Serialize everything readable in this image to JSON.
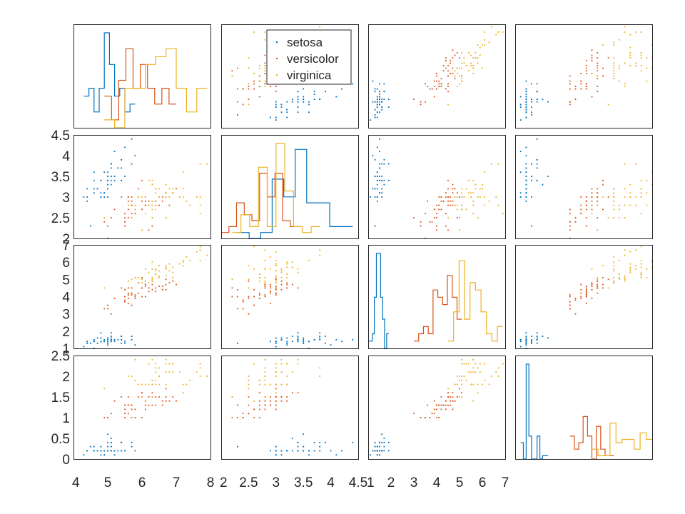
{
  "colors": {
    "setosa": "#0072bd",
    "versicolor": "#d95319",
    "virginica": "#edb120",
    "axes": "#262626",
    "background": "#ffffff"
  },
  "chart_data": {
    "type": "scatter",
    "layout": "scatter-matrix 4x4 with histograms on diagonal",
    "title": "",
    "variables": [
      "",
      "",
      "",
      ""
    ],
    "legend": {
      "placement": "top (inside panel row 1, column 2)",
      "entries": [
        "setosa",
        "versicolor",
        "virginica"
      ]
    },
    "grid": false,
    "axes": {
      "sepal_length": {
        "range": [
          4,
          8
        ],
        "ticks": [
          "4",
          "5",
          "6",
          "7",
          "8"
        ]
      },
      "sepal_width": {
        "range": [
          2,
          4.5
        ],
        "ticks": [
          "2",
          "2.5",
          "3",
          "3.5",
          "4",
          "4.5"
        ]
      },
      "petal_length": {
        "range": [
          1,
          7
        ],
        "ticks": [
          "1",
          "2",
          "3",
          "4",
          "5",
          "6",
          "7"
        ]
      },
      "petal_width": {
        "range": [
          0,
          2.5
        ],
        "ticks": [
          "0",
          "0.5",
          "1",
          "1.5",
          "2",
          "2.5"
        ]
      }
    },
    "series": [
      {
        "name": "setosa",
        "points": [
          [
            5.1,
            3.5,
            1.4,
            0.2
          ],
          [
            4.9,
            3.0,
            1.4,
            0.2
          ],
          [
            4.7,
            3.2,
            1.3,
            0.2
          ],
          [
            4.6,
            3.1,
            1.5,
            0.2
          ],
          [
            5.0,
            3.6,
            1.4,
            0.2
          ],
          [
            5.4,
            3.9,
            1.7,
            0.4
          ],
          [
            4.6,
            3.4,
            1.4,
            0.3
          ],
          [
            5.0,
            3.4,
            1.5,
            0.2
          ],
          [
            4.4,
            2.9,
            1.4,
            0.2
          ],
          [
            4.9,
            3.1,
            1.5,
            0.1
          ],
          [
            5.4,
            3.7,
            1.5,
            0.2
          ],
          [
            4.8,
            3.4,
            1.6,
            0.2
          ],
          [
            4.8,
            3.0,
            1.4,
            0.1
          ],
          [
            4.3,
            3.0,
            1.1,
            0.1
          ],
          [
            5.8,
            4.0,
            1.2,
            0.2
          ],
          [
            5.7,
            4.4,
            1.5,
            0.4
          ],
          [
            5.4,
            3.9,
            1.3,
            0.4
          ],
          [
            5.1,
            3.5,
            1.4,
            0.3
          ],
          [
            5.7,
            3.8,
            1.7,
            0.3
          ],
          [
            5.1,
            3.8,
            1.5,
            0.3
          ],
          [
            5.4,
            3.4,
            1.7,
            0.2
          ],
          [
            5.1,
            3.7,
            1.5,
            0.4
          ],
          [
            4.6,
            3.6,
            1.0,
            0.2
          ],
          [
            5.1,
            3.3,
            1.7,
            0.5
          ],
          [
            4.8,
            3.4,
            1.9,
            0.2
          ],
          [
            5.0,
            3.0,
            1.6,
            0.2
          ],
          [
            5.0,
            3.4,
            1.6,
            0.4
          ],
          [
            5.2,
            3.5,
            1.5,
            0.2
          ],
          [
            5.2,
            3.4,
            1.4,
            0.2
          ],
          [
            4.7,
            3.2,
            1.6,
            0.2
          ],
          [
            4.8,
            3.1,
            1.6,
            0.2
          ],
          [
            5.4,
            3.4,
            1.5,
            0.4
          ],
          [
            5.2,
            4.1,
            1.5,
            0.1
          ],
          [
            5.5,
            4.2,
            1.4,
            0.2
          ],
          [
            4.9,
            3.1,
            1.5,
            0.2
          ],
          [
            5.0,
            3.2,
            1.2,
            0.2
          ],
          [
            5.5,
            3.5,
            1.3,
            0.2
          ],
          [
            4.9,
            3.6,
            1.4,
            0.1
          ],
          [
            4.4,
            3.0,
            1.3,
            0.2
          ],
          [
            5.1,
            3.4,
            1.5,
            0.2
          ],
          [
            5.0,
            3.5,
            1.3,
            0.3
          ],
          [
            4.5,
            2.3,
            1.3,
            0.3
          ],
          [
            4.4,
            3.2,
            1.3,
            0.2
          ],
          [
            5.0,
            3.5,
            1.6,
            0.6
          ],
          [
            5.1,
            3.8,
            1.9,
            0.4
          ],
          [
            4.8,
            3.0,
            1.4,
            0.3
          ],
          [
            5.1,
            3.8,
            1.6,
            0.2
          ],
          [
            4.6,
            3.2,
            1.4,
            0.2
          ],
          [
            5.3,
            3.7,
            1.5,
            0.2
          ],
          [
            5.0,
            3.3,
            1.4,
            0.2
          ]
        ]
      },
      {
        "name": "versicolor",
        "points": [
          [
            7.0,
            3.2,
            4.7,
            1.4
          ],
          [
            6.4,
            3.2,
            4.5,
            1.5
          ],
          [
            6.9,
            3.1,
            4.9,
            1.5
          ],
          [
            5.5,
            2.3,
            4.0,
            1.3
          ],
          [
            6.5,
            2.8,
            4.6,
            1.5
          ],
          [
            5.7,
            2.8,
            4.5,
            1.3
          ],
          [
            6.3,
            3.3,
            4.7,
            1.6
          ],
          [
            4.9,
            2.4,
            3.3,
            1.0
          ],
          [
            6.6,
            2.9,
            4.6,
            1.3
          ],
          [
            5.2,
            2.7,
            3.9,
            1.4
          ],
          [
            5.0,
            2.0,
            3.5,
            1.0
          ],
          [
            5.9,
            3.0,
            4.2,
            1.5
          ],
          [
            6.0,
            2.2,
            4.0,
            1.0
          ],
          [
            6.1,
            2.9,
            4.7,
            1.4
          ],
          [
            5.6,
            2.9,
            3.6,
            1.3
          ],
          [
            6.7,
            3.1,
            4.4,
            1.4
          ],
          [
            5.6,
            3.0,
            4.5,
            1.5
          ],
          [
            5.8,
            2.7,
            4.1,
            1.0
          ],
          [
            6.2,
            2.2,
            4.5,
            1.5
          ],
          [
            5.6,
            2.5,
            3.9,
            1.1
          ],
          [
            5.9,
            3.2,
            4.8,
            1.8
          ],
          [
            6.1,
            2.8,
            4.0,
            1.3
          ],
          [
            6.3,
            2.5,
            4.9,
            1.5
          ],
          [
            6.1,
            2.8,
            4.7,
            1.2
          ],
          [
            6.4,
            2.9,
            4.3,
            1.3
          ],
          [
            6.6,
            3.0,
            4.4,
            1.4
          ],
          [
            6.8,
            2.8,
            4.8,
            1.4
          ],
          [
            6.7,
            3.0,
            5.0,
            1.7
          ],
          [
            6.0,
            2.9,
            4.5,
            1.5
          ],
          [
            5.7,
            2.6,
            3.5,
            1.0
          ],
          [
            5.5,
            2.4,
            3.8,
            1.1
          ],
          [
            5.5,
            2.4,
            3.7,
            1.0
          ],
          [
            5.8,
            2.7,
            3.9,
            1.2
          ],
          [
            6.0,
            2.7,
            5.1,
            1.6
          ],
          [
            5.4,
            3.0,
            4.5,
            1.5
          ],
          [
            6.0,
            3.4,
            4.5,
            1.6
          ],
          [
            6.7,
            3.1,
            4.7,
            1.5
          ],
          [
            6.3,
            2.3,
            4.4,
            1.3
          ],
          [
            5.6,
            3.0,
            4.1,
            1.3
          ],
          [
            5.5,
            2.5,
            4.0,
            1.3
          ],
          [
            5.5,
            2.6,
            4.4,
            1.2
          ],
          [
            6.1,
            3.0,
            4.6,
            1.4
          ],
          [
            5.8,
            2.6,
            4.0,
            1.2
          ],
          [
            5.0,
            2.3,
            3.3,
            1.0
          ],
          [
            5.6,
            2.7,
            4.2,
            1.3
          ],
          [
            5.7,
            3.0,
            4.2,
            1.2
          ],
          [
            5.7,
            2.9,
            4.2,
            1.3
          ],
          [
            6.2,
            2.9,
            4.3,
            1.3
          ],
          [
            5.1,
            2.5,
            3.0,
            1.1
          ],
          [
            5.7,
            2.8,
            4.1,
            1.3
          ]
        ]
      },
      {
        "name": "virginica",
        "points": [
          [
            6.3,
            3.3,
            6.0,
            2.5
          ],
          [
            5.8,
            2.7,
            5.1,
            1.9
          ],
          [
            7.1,
            3.0,
            5.9,
            2.1
          ],
          [
            6.3,
            2.9,
            5.6,
            1.8
          ],
          [
            6.5,
            3.0,
            5.8,
            2.2
          ],
          [
            7.6,
            3.0,
            6.6,
            2.1
          ],
          [
            4.9,
            2.5,
            4.5,
            1.7
          ],
          [
            7.3,
            2.9,
            6.3,
            1.8
          ],
          [
            6.7,
            2.5,
            5.8,
            1.8
          ],
          [
            7.2,
            3.6,
            6.1,
            2.5
          ],
          [
            6.5,
            3.2,
            5.1,
            2.0
          ],
          [
            6.4,
            2.7,
            5.3,
            1.9
          ],
          [
            6.8,
            3.0,
            5.5,
            2.1
          ],
          [
            5.7,
            2.5,
            5.0,
            2.0
          ],
          [
            5.8,
            2.8,
            5.1,
            2.4
          ],
          [
            6.4,
            3.2,
            5.3,
            2.3
          ],
          [
            6.5,
            3.0,
            5.5,
            1.8
          ],
          [
            7.7,
            3.8,
            6.7,
            2.2
          ],
          [
            7.7,
            2.6,
            6.9,
            2.3
          ],
          [
            6.0,
            2.2,
            5.0,
            1.5
          ],
          [
            6.9,
            3.2,
            5.7,
            2.3
          ],
          [
            5.6,
            2.8,
            4.9,
            2.0
          ],
          [
            7.7,
            2.8,
            6.7,
            2.0
          ],
          [
            6.3,
            2.7,
            4.9,
            1.8
          ],
          [
            6.7,
            3.3,
            5.7,
            2.1
          ],
          [
            7.2,
            3.2,
            6.0,
            1.8
          ],
          [
            6.2,
            2.8,
            4.8,
            1.8
          ],
          [
            6.1,
            3.0,
            4.9,
            1.8
          ],
          [
            6.4,
            2.8,
            5.6,
            2.1
          ],
          [
            7.2,
            3.0,
            5.8,
            1.6
          ],
          [
            7.4,
            2.8,
            6.1,
            1.9
          ],
          [
            7.9,
            3.8,
            6.4,
            2.0
          ],
          [
            6.4,
            2.8,
            5.6,
            2.2
          ],
          [
            6.3,
            2.8,
            5.1,
            1.5
          ],
          [
            6.1,
            2.6,
            5.6,
            1.4
          ],
          [
            7.7,
            3.0,
            6.1,
            2.3
          ],
          [
            6.3,
            3.4,
            5.6,
            2.4
          ],
          [
            6.4,
            3.1,
            5.5,
            1.8
          ],
          [
            6.0,
            3.0,
            4.8,
            1.8
          ],
          [
            6.9,
            3.1,
            5.4,
            2.1
          ],
          [
            6.7,
            3.1,
            5.6,
            2.4
          ],
          [
            6.9,
            3.1,
            5.1,
            2.3
          ],
          [
            5.8,
            2.7,
            5.1,
            1.9
          ],
          [
            6.8,
            3.2,
            5.9,
            2.3
          ],
          [
            6.7,
            3.3,
            5.7,
            2.5
          ],
          [
            6.7,
            3.0,
            5.2,
            2.3
          ],
          [
            6.3,
            2.5,
            5.0,
            1.9
          ],
          [
            6.5,
            3.0,
            5.2,
            2.0
          ],
          [
            6.2,
            3.4,
            5.4,
            2.3
          ],
          [
            5.9,
            3.0,
            5.1,
            1.8
          ]
        ]
      }
    ],
    "histogram_bins": 10
  }
}
